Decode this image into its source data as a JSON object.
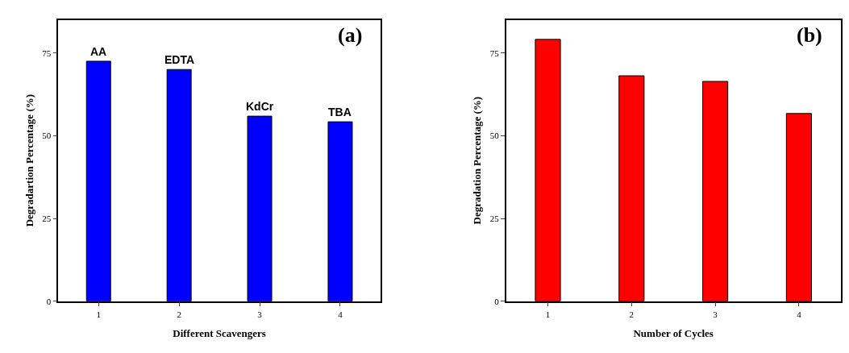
{
  "chart_data": [
    {
      "type": "bar",
      "xlabel": "Different Scavengers",
      "ylabel": "Degradartion Percentage (%)",
      "categories": [
        "1",
        "2",
        "3",
        "4"
      ],
      "values": [
        72.5,
        70,
        55.9,
        54.2
      ],
      "color": "#0000ff",
      "ylim": [
        0,
        85
      ],
      "yticks": [
        0,
        25,
        50,
        75
      ],
      "annotations": [
        "(a)",
        {
          "text": "AA",
          "x": "1",
          "y": 72.5
        },
        {
          "text": "EDTA",
          "x": "2",
          "y": 70
        },
        {
          "text": "KdCr",
          "x": "3",
          "y": 55.9
        },
        {
          "text": "TBA",
          "x": "4",
          "y": 54.2
        }
      ]
    },
    {
      "type": "bar",
      "xlabel": "Number of Cycles",
      "ylabel": "Degradation Percentage (%)",
      "categories": [
        "1",
        "2",
        "3",
        "4"
      ],
      "values": [
        79.1,
        68.1,
        66.4,
        56.7
      ],
      "color": "#ff0000",
      "ylim": [
        0,
        85
      ],
      "yticks": [
        0,
        25,
        50,
        75
      ],
      "annotations": [
        "(b)"
      ]
    }
  ]
}
